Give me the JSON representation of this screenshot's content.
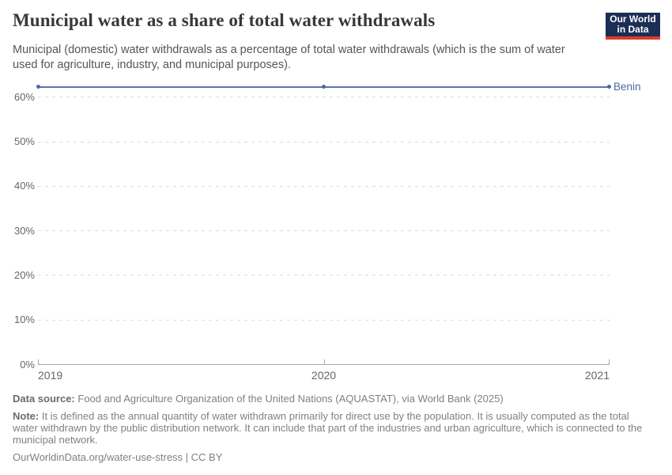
{
  "header": {
    "title": "Municipal water as a share of total water withdrawals",
    "logo": {
      "line1": "Our World",
      "line2": "in Data"
    }
  },
  "subtitle": "Municipal (domestic) water withdrawals as a percentage of total water withdrawals (which is the sum of water used for agriculture, industry, and municipal purposes).",
  "chart_data": {
    "type": "line",
    "title": "Municipal water as a share of total water withdrawals",
    "x": [
      2019,
      2020,
      2021
    ],
    "series": [
      {
        "name": "Benin",
        "values": [
          62.2,
          62.2,
          62.2
        ]
      }
    ],
    "xlabel": "",
    "ylabel": "",
    "ylim": [
      0,
      62.2
    ],
    "yticks": [
      0,
      10,
      20,
      30,
      40,
      50,
      60
    ],
    "ytick_labels": [
      "0%",
      "10%",
      "20%",
      "30%",
      "40%",
      "50%",
      "60%"
    ],
    "xtick_labels": [
      "2019",
      "2020",
      "2021"
    ],
    "grid": "horizontal-dashed",
    "legend_position": "end-of-line-label"
  },
  "colors": {
    "series_line": "#5878AB",
    "series_point": "#4C6A9C",
    "entity_label": "#4C6A9C",
    "grid": "#DCDCDC",
    "axis": "#A8A8A8",
    "logo_bg": "#1B2E55",
    "logo_accent": "#E0392C"
  },
  "footer": {
    "data_source_label": "Data source:",
    "data_source": "Food and Agriculture Organization of the United Nations (AQUASTAT), via World Bank (2025)",
    "note_label": "Note:",
    "note": "It is defined as the annual quantity of water withdrawn primarily for direct use by the population. It is usually computed as the total water withdrawn by the public distribution network. It can include that part of the industries and urban agriculture, which is connected to the municipal network.",
    "link": "OurWorldinData.org/water-use-stress | CC BY"
  }
}
